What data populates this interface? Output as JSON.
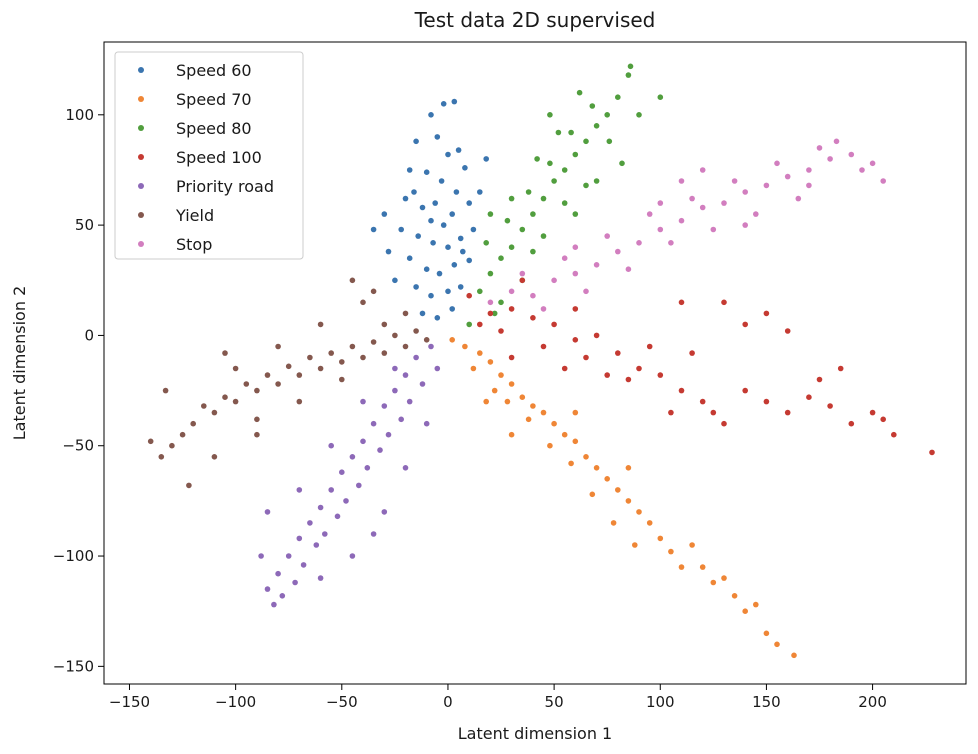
{
  "chart_data": {
    "type": "scatter",
    "title": "Test data 2D supervised",
    "xlabel": "Latent dimension 1",
    "ylabel": "Latent dimension 2",
    "xlim": [
      -162,
      244
    ],
    "ylim": [
      -158,
      133
    ],
    "xticks": [
      -150,
      -100,
      -50,
      0,
      50,
      100,
      150,
      200
    ],
    "yticks": [
      -150,
      -100,
      -50,
      0,
      50,
      100
    ],
    "xtick_labels": [
      "−150",
      "−100",
      "−50",
      "0",
      "50",
      "100",
      "150",
      "200"
    ],
    "ytick_labels": [
      "−150",
      "−100",
      "−50",
      "0",
      "50",
      "100"
    ],
    "legend_position": "top-left",
    "grid": false,
    "series": [
      {
        "name": "Speed 60",
        "color": "#3b75af",
        "points": [
          [
            -8,
            100
          ],
          [
            -2,
            105
          ],
          [
            3,
            106
          ],
          [
            -15,
            88
          ],
          [
            -5,
            90
          ],
          [
            0,
            82
          ],
          [
            5,
            84
          ],
          [
            -18,
            75
          ],
          [
            -10,
            74
          ],
          [
            -3,
            70
          ],
          [
            8,
            76
          ],
          [
            -20,
            62
          ],
          [
            -12,
            58
          ],
          [
            -6,
            60
          ],
          [
            2,
            55
          ],
          [
            10,
            60
          ],
          [
            -22,
            48
          ],
          [
            -14,
            45
          ],
          [
            -7,
            42
          ],
          [
            0,
            40
          ],
          [
            6,
            44
          ],
          [
            12,
            48
          ],
          [
            -18,
            35
          ],
          [
            -10,
            30
          ],
          [
            -4,
            28
          ],
          [
            3,
            32
          ],
          [
            10,
            34
          ],
          [
            -25,
            25
          ],
          [
            -15,
            22
          ],
          [
            -8,
            18
          ],
          [
            0,
            20
          ],
          [
            6,
            22
          ],
          [
            -12,
            10
          ],
          [
            -5,
            8
          ],
          [
            2,
            12
          ],
          [
            -30,
            55
          ],
          [
            -35,
            48
          ],
          [
            15,
            65
          ],
          [
            18,
            80
          ],
          [
            -28,
            38
          ],
          [
            -2,
            50
          ],
          [
            4,
            65
          ],
          [
            -8,
            52
          ],
          [
            7,
            38
          ],
          [
            -16,
            65
          ]
        ]
      },
      {
        "name": "Speed 70",
        "color": "#ef8636",
        "points": [
          [
            2,
            -2
          ],
          [
            8,
            -5
          ],
          [
            15,
            -8
          ],
          [
            20,
            -12
          ],
          [
            12,
            -15
          ],
          [
            25,
            -18
          ],
          [
            30,
            -22
          ],
          [
            22,
            -25
          ],
          [
            35,
            -28
          ],
          [
            40,
            -32
          ],
          [
            28,
            -30
          ],
          [
            45,
            -35
          ],
          [
            50,
            -40
          ],
          [
            38,
            -38
          ],
          [
            55,
            -45
          ],
          [
            60,
            -48
          ],
          [
            48,
            -50
          ],
          [
            65,
            -55
          ],
          [
            70,
            -60
          ],
          [
            58,
            -58
          ],
          [
            75,
            -65
          ],
          [
            80,
            -70
          ],
          [
            68,
            -72
          ],
          [
            85,
            -75
          ],
          [
            90,
            -80
          ],
          [
            78,
            -85
          ],
          [
            95,
            -85
          ],
          [
            100,
            -92
          ],
          [
            88,
            -95
          ],
          [
            105,
            -98
          ],
          [
            110,
            -105
          ],
          [
            120,
            -105
          ],
          [
            125,
            -112
          ],
          [
            135,
            -118
          ],
          [
            140,
            -125
          ],
          [
            145,
            -122
          ],
          [
            150,
            -135
          ],
          [
            155,
            -140
          ],
          [
            163,
            -145
          ],
          [
            130,
            -110
          ],
          [
            115,
            -95
          ],
          [
            18,
            -30
          ],
          [
            30,
            -45
          ],
          [
            60,
            -35
          ],
          [
            85,
            -60
          ]
        ]
      },
      {
        "name": "Speed 80",
        "color": "#519e3e",
        "points": [
          [
            15,
            20
          ],
          [
            20,
            28
          ],
          [
            25,
            35
          ],
          [
            18,
            42
          ],
          [
            30,
            40
          ],
          [
            35,
            48
          ],
          [
            28,
            52
          ],
          [
            40,
            55
          ],
          [
            45,
            62
          ],
          [
            38,
            65
          ],
          [
            50,
            70
          ],
          [
            55,
            75
          ],
          [
            48,
            78
          ],
          [
            60,
            82
          ],
          [
            65,
            88
          ],
          [
            58,
            92
          ],
          [
            70,
            95
          ],
          [
            75,
            100
          ],
          [
            68,
            104
          ],
          [
            80,
            108
          ],
          [
            85,
            118
          ],
          [
            86,
            122
          ],
          [
            100,
            108
          ],
          [
            90,
            100
          ],
          [
            55,
            60
          ],
          [
            45,
            45
          ],
          [
            35,
            25
          ],
          [
            25,
            15
          ],
          [
            40,
            38
          ],
          [
            60,
            55
          ],
          [
            70,
            70
          ],
          [
            30,
            62
          ],
          [
            20,
            55
          ],
          [
            42,
            80
          ],
          [
            52,
            92
          ],
          [
            62,
            110
          ],
          [
            48,
            100
          ],
          [
            76,
            88
          ],
          [
            82,
            78
          ],
          [
            65,
            68
          ],
          [
            10,
            5
          ],
          [
            22,
            10
          ]
        ]
      },
      {
        "name": "Speed 100",
        "color": "#c53a32",
        "points": [
          [
            10,
            18
          ],
          [
            20,
            10
          ],
          [
            30,
            12
          ],
          [
            25,
            2
          ],
          [
            40,
            8
          ],
          [
            50,
            5
          ],
          [
            45,
            -5
          ],
          [
            60,
            -2
          ],
          [
            70,
            0
          ],
          [
            65,
            -10
          ],
          [
            80,
            -8
          ],
          [
            90,
            -15
          ],
          [
            85,
            -20
          ],
          [
            100,
            -18
          ],
          [
            110,
            -25
          ],
          [
            105,
            -35
          ],
          [
            120,
            -30
          ],
          [
            130,
            -40
          ],
          [
            125,
            -35
          ],
          [
            140,
            -25
          ],
          [
            150,
            -30
          ],
          [
            160,
            -35
          ],
          [
            170,
            -28
          ],
          [
            180,
            -32
          ],
          [
            190,
            -40
          ],
          [
            200,
            -35
          ],
          [
            210,
            -45
          ],
          [
            228,
            -53
          ],
          [
            110,
            15
          ],
          [
            130,
            15
          ],
          [
            150,
            10
          ],
          [
            160,
            2
          ],
          [
            140,
            5
          ],
          [
            30,
            -10
          ],
          [
            55,
            -15
          ],
          [
            75,
            -18
          ],
          [
            95,
            -5
          ],
          [
            115,
            -8
          ],
          [
            175,
            -20
          ],
          [
            185,
            -15
          ],
          [
            205,
            -38
          ],
          [
            35,
            25
          ],
          [
            15,
            5
          ],
          [
            60,
            12
          ]
        ]
      },
      {
        "name": "Priority road",
        "color": "#8d69b8",
        "points": [
          [
            -8,
            -5
          ],
          [
            -15,
            -10
          ],
          [
            -5,
            -15
          ],
          [
            -20,
            -18
          ],
          [
            -12,
            -22
          ],
          [
            -25,
            -25
          ],
          [
            -18,
            -30
          ],
          [
            -30,
            -32
          ],
          [
            -22,
            -38
          ],
          [
            -35,
            -40
          ],
          [
            -28,
            -45
          ],
          [
            -40,
            -48
          ],
          [
            -32,
            -52
          ],
          [
            -45,
            -55
          ],
          [
            -38,
            -60
          ],
          [
            -50,
            -62
          ],
          [
            -42,
            -68
          ],
          [
            -55,
            -70
          ],
          [
            -48,
            -75
          ],
          [
            -60,
            -78
          ],
          [
            -52,
            -82
          ],
          [
            -65,
            -85
          ],
          [
            -58,
            -90
          ],
          [
            -70,
            -92
          ],
          [
            -62,
            -95
          ],
          [
            -75,
            -100
          ],
          [
            -68,
            -104
          ],
          [
            -80,
            -108
          ],
          [
            -72,
            -112
          ],
          [
            -85,
            -115
          ],
          [
            -78,
            -118
          ],
          [
            -82,
            -122
          ],
          [
            -60,
            -110
          ],
          [
            -45,
            -100
          ],
          [
            -30,
            -80
          ],
          [
            -20,
            -60
          ],
          [
            -10,
            -40
          ],
          [
            -55,
            -50
          ],
          [
            -70,
            -70
          ],
          [
            -88,
            -100
          ],
          [
            -85,
            -80
          ],
          [
            -40,
            -30
          ],
          [
            -25,
            -15
          ],
          [
            -35,
            -90
          ]
        ]
      },
      {
        "name": "Yield",
        "color": "#84584e",
        "points": [
          [
            -10,
            -2
          ],
          [
            -15,
            2
          ],
          [
            -20,
            -5
          ],
          [
            -25,
            0
          ],
          [
            -30,
            -8
          ],
          [
            -35,
            -3
          ],
          [
            -40,
            -10
          ],
          [
            -45,
            -5
          ],
          [
            -50,
            -12
          ],
          [
            -55,
            -8
          ],
          [
            -60,
            -15
          ],
          [
            -65,
            -10
          ],
          [
            -70,
            -18
          ],
          [
            -75,
            -14
          ],
          [
            -80,
            -22
          ],
          [
            -85,
            -18
          ],
          [
            -90,
            -25
          ],
          [
            -95,
            -22
          ],
          [
            -100,
            -30
          ],
          [
            -105,
            -28
          ],
          [
            -110,
            -35
          ],
          [
            -115,
            -32
          ],
          [
            -120,
            -40
          ],
          [
            -125,
            -45
          ],
          [
            -130,
            -50
          ],
          [
            -135,
            -55
          ],
          [
            -140,
            -48
          ],
          [
            -122,
            -68
          ],
          [
            -110,
            -55
          ],
          [
            -90,
            -38
          ],
          [
            -70,
            -30
          ],
          [
            -50,
            -20
          ],
          [
            -30,
            5
          ],
          [
            -20,
            10
          ],
          [
            -40,
            15
          ],
          [
            -60,
            5
          ],
          [
            -80,
            -5
          ],
          [
            -100,
            -15
          ],
          [
            -105,
            -8
          ],
          [
            -133,
            -25
          ],
          [
            -90,
            -45
          ],
          [
            -45,
            25
          ],
          [
            -35,
            20
          ]
        ]
      },
      {
        "name": "Stop",
        "color": "#d27ebf",
        "points": [
          [
            20,
            15
          ],
          [
            30,
            20
          ],
          [
            40,
            18
          ],
          [
            50,
            25
          ],
          [
            60,
            28
          ],
          [
            55,
            35
          ],
          [
            70,
            32
          ],
          [
            80,
            38
          ],
          [
            75,
            45
          ],
          [
            90,
            42
          ],
          [
            100,
            48
          ],
          [
            95,
            55
          ],
          [
            110,
            52
          ],
          [
            120,
            58
          ],
          [
            115,
            62
          ],
          [
            130,
            60
          ],
          [
            140,
            65
          ],
          [
            135,
            70
          ],
          [
            150,
            68
          ],
          [
            160,
            72
          ],
          [
            155,
            78
          ],
          [
            170,
            75
          ],
          [
            180,
            80
          ],
          [
            175,
            85
          ],
          [
            190,
            82
          ],
          [
            200,
            78
          ],
          [
            205,
            70
          ],
          [
            183,
            88
          ],
          [
            195,
            75
          ],
          [
            165,
            62
          ],
          [
            145,
            55
          ],
          [
            125,
            48
          ],
          [
            105,
            42
          ],
          [
            85,
            30
          ],
          [
            65,
            20
          ],
          [
            45,
            12
          ],
          [
            35,
            28
          ],
          [
            60,
            40
          ],
          [
            100,
            60
          ],
          [
            140,
            50
          ],
          [
            110,
            70
          ],
          [
            170,
            68
          ],
          [
            120,
            75
          ]
        ]
      }
    ]
  }
}
